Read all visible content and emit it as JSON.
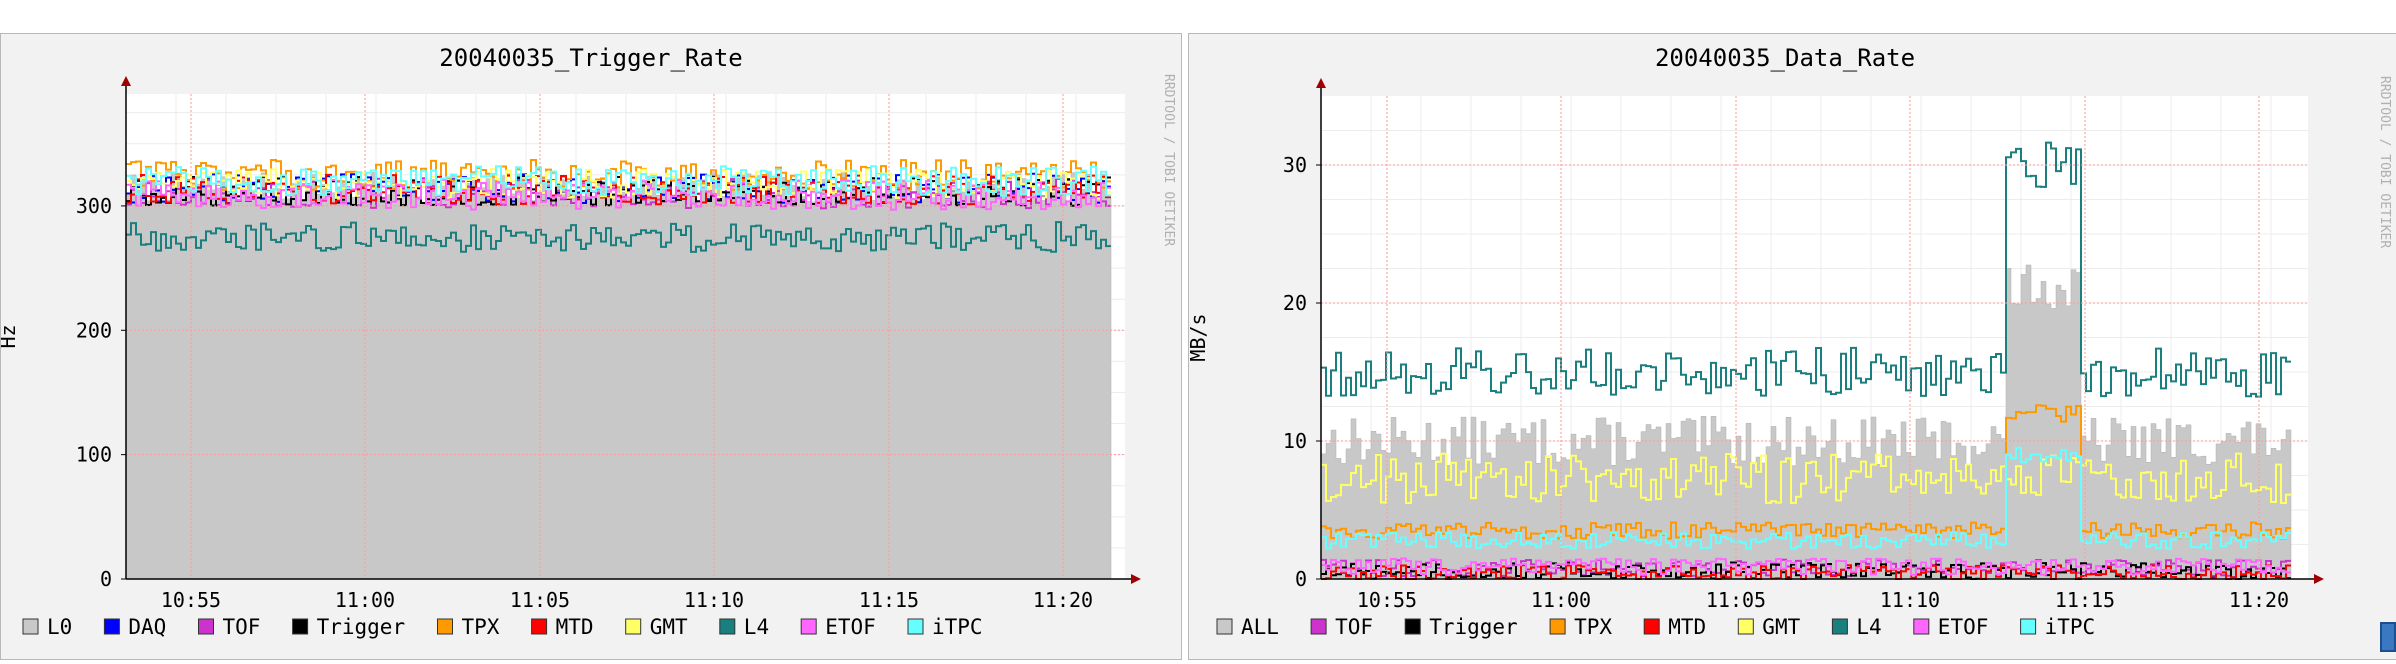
{
  "chart_data": [
    {
      "type": "area",
      "title": "20040035_Trigger_Rate",
      "ylabel": "Hz",
      "xlabel": "",
      "ylim": [
        0,
        390
      ],
      "yticks": [
        0,
        100,
        200,
        300
      ],
      "x_ticks": [
        "10:55",
        "11:00",
        "11:05",
        "11:10",
        "11:15",
        "11:20"
      ],
      "grid": true,
      "legend_position": "bottom",
      "watermark": "RRDTOOL / TOBI OETIKER",
      "series": [
        {
          "name": "L0",
          "color": "#c8c8c8",
          "level": 315
        },
        {
          "name": "DAQ",
          "color": "#0000ff",
          "level": 314
        },
        {
          "name": "TOF",
          "color": "#cc33cc",
          "level": 310
        },
        {
          "name": "Trigger",
          "color": "#000000",
          "level": 312
        },
        {
          "name": "TPX",
          "color": "#ff9900",
          "level": 325
        },
        {
          "name": "MTD",
          "color": "#ff0000",
          "level": 313
        },
        {
          "name": "GMT",
          "color": "#ffff66",
          "level": 318
        },
        {
          "name": "L4",
          "color": "#1a7f7f",
          "level": 275
        },
        {
          "name": "ETOF",
          "color": "#ff66ff",
          "level": 309
        },
        {
          "name": "iTPC",
          "color": "#66ffff",
          "level": 320
        }
      ]
    },
    {
      "type": "area",
      "title": "20040035_Data_Rate",
      "ylabel": "MB/s",
      "xlabel": "",
      "ylim": [
        0,
        35
      ],
      "yticks": [
        0,
        10,
        20,
        30
      ],
      "x_ticks": [
        "10:55",
        "11:00",
        "11:05",
        "11:10",
        "11:15",
        "11:20"
      ],
      "grid": true,
      "legend_position": "bottom",
      "watermark": "RRDTOOL / TOBI OETIKER",
      "series": [
        {
          "name": "ALL",
          "color": "#c8c8c8",
          "level": 10,
          "peak": 21
        },
        {
          "name": "TOF",
          "color": "#cc33cc",
          "level": 0.8
        },
        {
          "name": "Trigger",
          "color": "#000000",
          "level": 0.6
        },
        {
          "name": "TPX",
          "color": "#ff9900",
          "level": 3.5,
          "peak": 12
        },
        {
          "name": "MTD",
          "color": "#ff0000",
          "level": 0.4
        },
        {
          "name": "GMT",
          "color": "#ffff66",
          "level": 7.3
        },
        {
          "name": "L4",
          "color": "#1a7f7f",
          "level": 15,
          "peak": 30
        },
        {
          "name": "ETOF",
          "color": "#ff66ff",
          "level": 0.9
        },
        {
          "name": "iTPC",
          "color": "#66ffff",
          "level": 2.8,
          "peak": 9
        }
      ]
    }
  ]
}
